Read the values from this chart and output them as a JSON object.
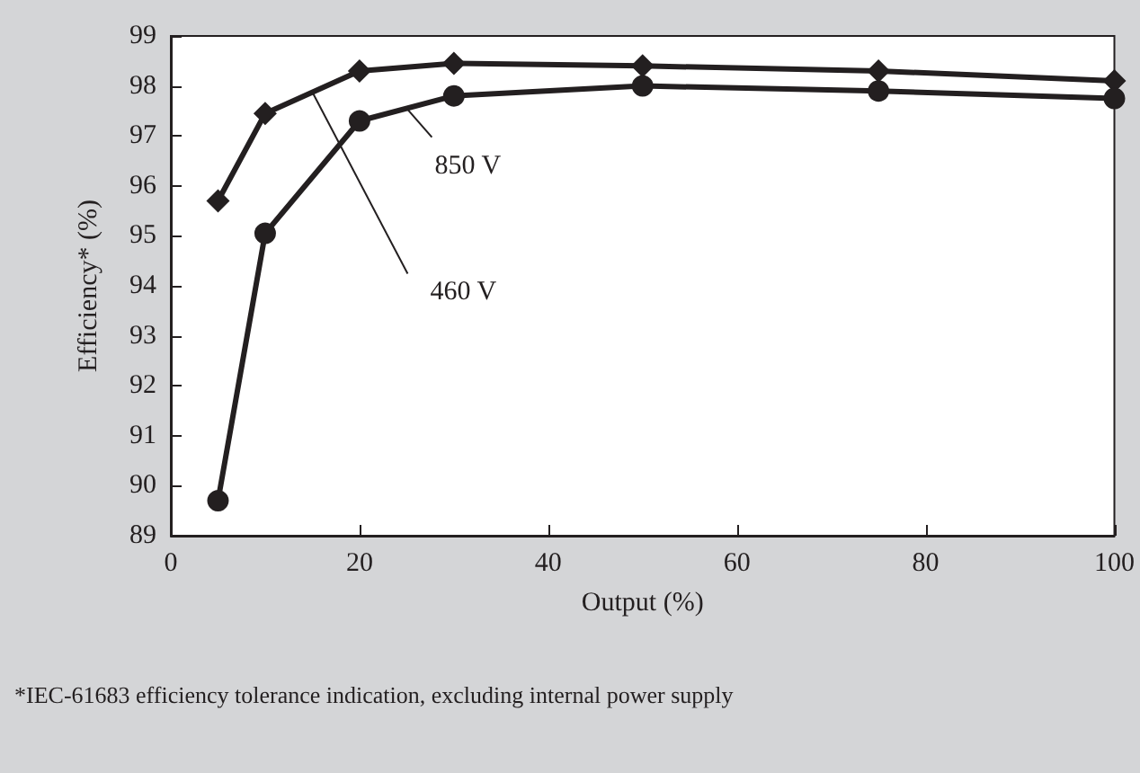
{
  "chart_data": {
    "type": "line",
    "xlabel": "Output (%)",
    "ylabel": "Efficiency* (%)",
    "annotations": [
      "*IEC-61683 efficiency tolerance indication, excluding internal power supply"
    ],
    "x": [
      5,
      10,
      20,
      30,
      50,
      75,
      100
    ],
    "series": [
      {
        "name": "460 V",
        "color": "#231f20",
        "marker": "diamond",
        "values": [
          95.7,
          97.45,
          98.3,
          98.45,
          98.4,
          98.3,
          98.1
        ]
      },
      {
        "name": "850 V",
        "color": "#231f20",
        "marker": "circle",
        "values": [
          89.7,
          95.05,
          97.3,
          97.8,
          98.0,
          97.9,
          97.75
        ]
      }
    ],
    "xlim": [
      0,
      100
    ],
    "xticks": [
      0,
      20,
      40,
      60,
      80,
      100
    ],
    "ylim": [
      89,
      99
    ],
    "yticks": [
      89,
      90,
      91,
      92,
      93,
      94,
      95,
      96,
      97,
      98,
      99
    ],
    "grid": false,
    "line_style": "solid"
  }
}
